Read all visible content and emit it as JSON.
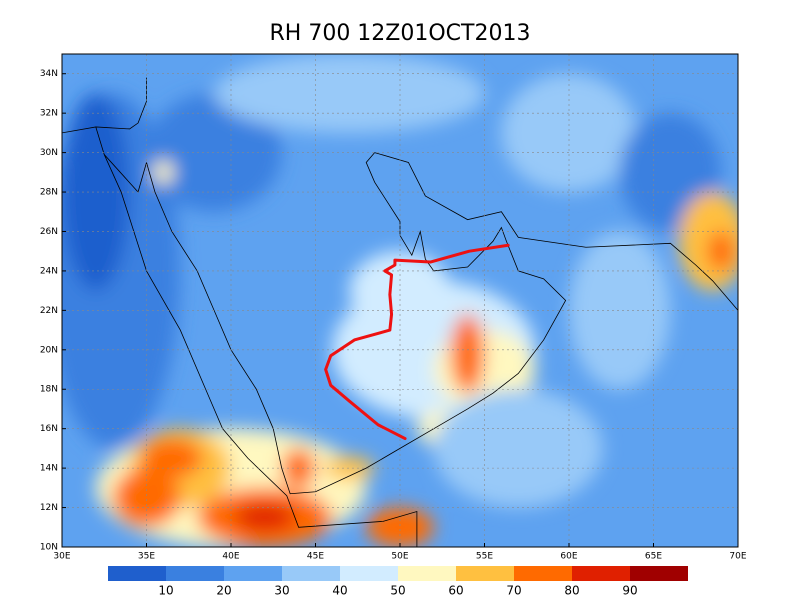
{
  "title": "RH 700 12Z01OCT2013",
  "map": {
    "lonlim": [
      30,
      70
    ],
    "latlim": [
      10,
      35
    ],
    "lon_ticks": [
      {
        "value": 30,
        "label": "30E"
      },
      {
        "value": 35,
        "label": "35E"
      },
      {
        "value": 40,
        "label": "40E"
      },
      {
        "value": 45,
        "label": "45E"
      },
      {
        "value": 50,
        "label": "50E"
      },
      {
        "value": 55,
        "label": "55E"
      },
      {
        "value": 60,
        "label": "60E"
      },
      {
        "value": 65,
        "label": "65E"
      },
      {
        "value": 70,
        "label": "70E"
      }
    ],
    "lat_ticks": [
      {
        "value": 10,
        "label": "10N"
      },
      {
        "value": 12,
        "label": "12N"
      },
      {
        "value": 14,
        "label": "14N"
      },
      {
        "value": 16,
        "label": "16N"
      },
      {
        "value": 18,
        "label": "18N"
      },
      {
        "value": 20,
        "label": "20N"
      },
      {
        "value": 22,
        "label": "22N"
      },
      {
        "value": 24,
        "label": "24N"
      },
      {
        "value": 26,
        "label": "26N"
      },
      {
        "value": 28,
        "label": "28N"
      },
      {
        "value": 30,
        "label": "30N"
      },
      {
        "value": 32,
        "label": "32N"
      },
      {
        "value": 34,
        "label": "34N"
      }
    ],
    "grid": true,
    "track": {
      "color": "#ee1111",
      "lon": [
        50.3,
        48.7,
        47.0,
        45.9,
        45.6,
        45.9,
        47.3,
        49.4,
        49.5,
        49.4,
        49.5,
        49.1,
        49.7,
        49.7,
        51.8,
        54.1,
        56.4
      ],
      "lat": [
        15.5,
        16.2,
        17.4,
        18.2,
        19.0,
        19.7,
        20.5,
        21.0,
        21.8,
        22.8,
        23.8,
        24.0,
        24.3,
        24.55,
        24.45,
        25.0,
        25.3
      ]
    }
  },
  "colorbar": {
    "levels": [
      10,
      20,
      30,
      40,
      50,
      60,
      70,
      80,
      90
    ],
    "colors": [
      "#1f5fcd",
      "#3a80e0",
      "#5ea2f0",
      "#98c9f8",
      "#d2ecff",
      "#fff8c0",
      "#ffc040",
      "#ff6a00",
      "#e02000",
      "#a00000"
    ]
  }
}
